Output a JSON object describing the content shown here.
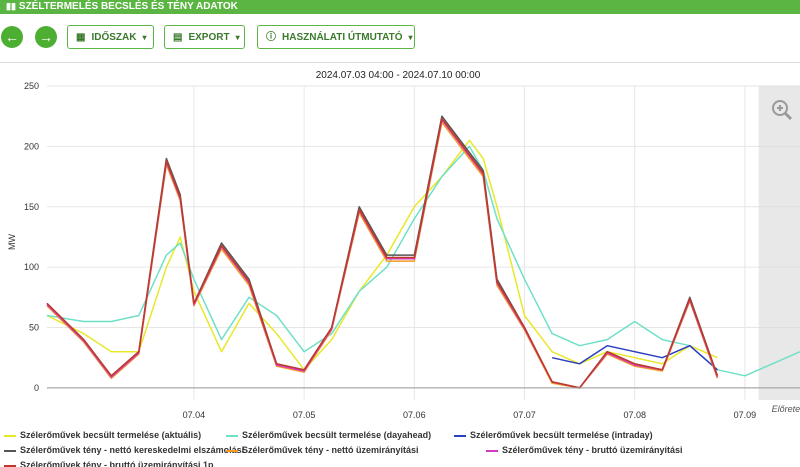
{
  "header": {
    "title": "SZÉLTERMELÉS BECSLÉS ÉS TÉNY ADATOK",
    "icon": "bar-chart-icon"
  },
  "toolbar": {
    "back_icon": "arrow-left-icon",
    "forward_icon": "arrow-right-icon",
    "period_label": "IDŐSZAK",
    "export_label": "EXPORT",
    "guide_label": "HASZNÁLATI ÚTMUTATÓ",
    "accent": "#5bb543"
  },
  "chart_data": {
    "type": "line",
    "title": "2024.07.03 04:00 - 2024.07.10 00:00",
    "ylabel": "MW",
    "ylim": [
      -10,
      250
    ],
    "yticks": [
      0,
      50,
      100,
      150,
      200,
      250
    ],
    "xlim": [
      "2024.07.03 04:00",
      "2024.07.10 00:00"
    ],
    "xticks": [
      "07.04",
      "07.05",
      "07.06",
      "07.07",
      "07.08",
      "07.09"
    ],
    "forecast_label": "Előrete",
    "forecast_start": "2024.07.09 15:00",
    "grid": true,
    "x_dates": [
      "07.03 04:00",
      "07.03 12:00",
      "07.03 18:00",
      "07.04 00:00",
      "07.04 06:00",
      "07.04 09:00",
      "07.04 12:00",
      "07.04 18:00",
      "07.05 00:00",
      "07.05 06:00",
      "07.05 12:00",
      "07.05 18:00",
      "07.06 00:00",
      "07.06 06:00",
      "07.06 12:00",
      "07.06 18:00",
      "07.07 00:00",
      "07.07 03:00",
      "07.07 06:00",
      "07.07 12:00",
      "07.07 18:00",
      "07.08 00:00",
      "07.08 06:00",
      "07.08 12:00",
      "07.08 18:00",
      "07.09 00:00",
      "07.09 06:00",
      "07.09 12:00",
      "07.09 18:00",
      "07.10 00:00"
    ],
    "series": [
      {
        "name": "Szélerőművek becsült termelése (aktuális)",
        "color": "#e8e82a",
        "values": [
          60,
          45,
          30,
          30,
          100,
          125,
          80,
          30,
          70,
          45,
          15,
          40,
          80,
          110,
          150,
          175,
          205,
          190,
          150,
          60,
          30,
          20,
          30,
          25,
          20,
          35,
          25,
          null,
          null,
          null
        ]
      },
      {
        "name": "Szélerőművek becsült termelése (dayahead)",
        "color": "#6fe0c8",
        "values": [
          60,
          55,
          55,
          60,
          110,
          120,
          90,
          40,
          75,
          60,
          30,
          45,
          80,
          100,
          140,
          175,
          200,
          180,
          140,
          90,
          45,
          35,
          40,
          55,
          40,
          35,
          15,
          10,
          20,
          30
        ]
      },
      {
        "name": "Szélerőművek becsült termelése (intraday)",
        "color": "#2b3fbf",
        "values": [
          null,
          null,
          null,
          null,
          null,
          null,
          null,
          null,
          null,
          null,
          null,
          null,
          null,
          null,
          null,
          null,
          null,
          null,
          null,
          null,
          25,
          20,
          35,
          30,
          25,
          35,
          15,
          null,
          null,
          null
        ]
      },
      {
        "name": "Szélerőművek tény - nettó kereskedelmi elszámolási",
        "color": "#555555",
        "values": [
          70,
          40,
          10,
          30,
          190,
          160,
          70,
          120,
          90,
          20,
          15,
          50,
          150,
          110,
          110,
          225,
          195,
          180,
          90,
          50,
          5,
          0,
          30,
          20,
          15,
          75,
          10,
          null,
          null,
          null
        ]
      },
      {
        "name": "Szélerőművek tény - nettó üzemirányítási",
        "color": "#f59a24",
        "values": [
          68,
          38,
          8,
          28,
          185,
          155,
          68,
          115,
          85,
          18,
          13,
          48,
          145,
          105,
          105,
          220,
          190,
          175,
          85,
          48,
          4,
          0,
          28,
          18,
          14,
          72,
          8,
          null,
          null,
          null
        ]
      },
      {
        "name": "Szélerőművek tény - bruttó üzemirányítási",
        "color": "#d23ac2",
        "values": [
          69,
          39,
          9,
          29,
          187,
          157,
          69,
          117,
          87,
          19,
          14,
          49,
          147,
          107,
          107,
          222,
          192,
          177,
          87,
          49,
          5,
          0,
          29,
          19,
          15,
          73,
          9,
          null,
          null,
          null
        ]
      },
      {
        "name": "Szélerőművek tény - bruttó üzemirányítási 1p",
        "color": "#c0392b",
        "values": [
          70,
          40,
          10,
          30,
          188,
          158,
          70,
          118,
          88,
          20,
          15,
          50,
          148,
          108,
          108,
          223,
          193,
          178,
          88,
          50,
          5,
          0,
          30,
          20,
          15,
          74,
          10,
          null,
          null,
          null
        ]
      }
    ]
  }
}
